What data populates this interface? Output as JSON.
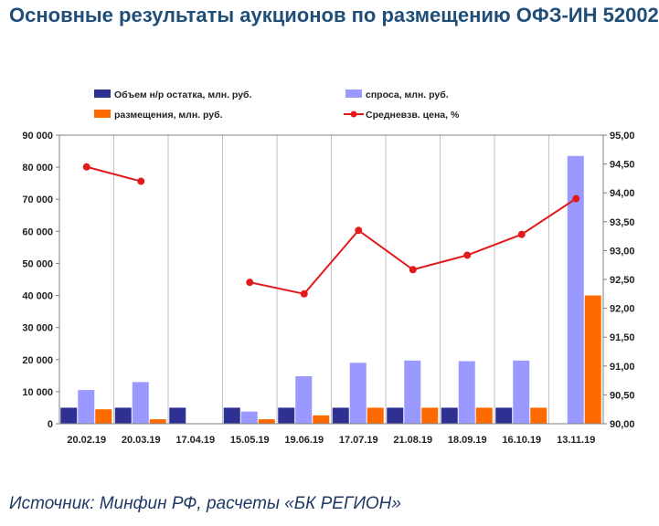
{
  "header": {
    "title": "Основные результаты  аукционов по размещению ОФЗ-ИН 52002"
  },
  "footer": {
    "source": "Источник: Минфин РФ, расчеты «БК РЕГИОН»"
  },
  "colors": {
    "volume": "#2e3192",
    "demand": "#9999ff",
    "placement": "#ff6a00",
    "price": "#e31a1c",
    "grid": "#c0c0c0"
  },
  "chart_data": {
    "type": "bar",
    "title": "Основные результаты  аукционов по размещению ОФЗ-ИН 52002",
    "categories": [
      "20.02.19",
      "20.03.19",
      "17.04.19",
      "15.05.19",
      "19.06.19",
      "17.07.19",
      "21.08.19",
      "18.09.19",
      "16.10.19",
      "13.11.19"
    ],
    "series": [
      {
        "name": "Объем н/р остатка, млн. руб.",
        "type": "bar",
        "axis": "left",
        "values": [
          5000,
          5000,
          5000,
          5000,
          5000,
          5000,
          5000,
          5000,
          5000,
          0
        ]
      },
      {
        "name": "спроса, млн. руб.",
        "type": "bar",
        "axis": "left",
        "values": [
          10500,
          13000,
          0,
          3800,
          14800,
          19000,
          19700,
          19500,
          19700,
          83500
        ]
      },
      {
        "name": "размещения, млн. руб.",
        "type": "bar",
        "axis": "left",
        "values": [
          4500,
          1400,
          0,
          1400,
          2600,
          5000,
          5000,
          5000,
          5000,
          40000
        ]
      },
      {
        "name": "Средневзв. цена, %",
        "type": "line",
        "axis": "right",
        "values": [
          94.45,
          94.2,
          null,
          92.45,
          92.25,
          93.35,
          92.67,
          92.92,
          93.28,
          93.9
        ]
      }
    ],
    "ylim": [
      0,
      90000
    ],
    "y_ticks": [
      "0",
      "10 000",
      "20 000",
      "30 000",
      "40 000",
      "50 000",
      "60 000",
      "70 000",
      "80 000",
      "90 000"
    ],
    "y2lim": [
      90,
      95
    ],
    "y2_ticks": [
      "90,00",
      "90,50",
      "91,00",
      "91,50",
      "92,00",
      "92,50",
      "93,00",
      "93,50",
      "94,00",
      "94,50",
      "95,00"
    ],
    "grid": "vertical",
    "legend": "top",
    "xlabel": "",
    "ylabel": ""
  }
}
